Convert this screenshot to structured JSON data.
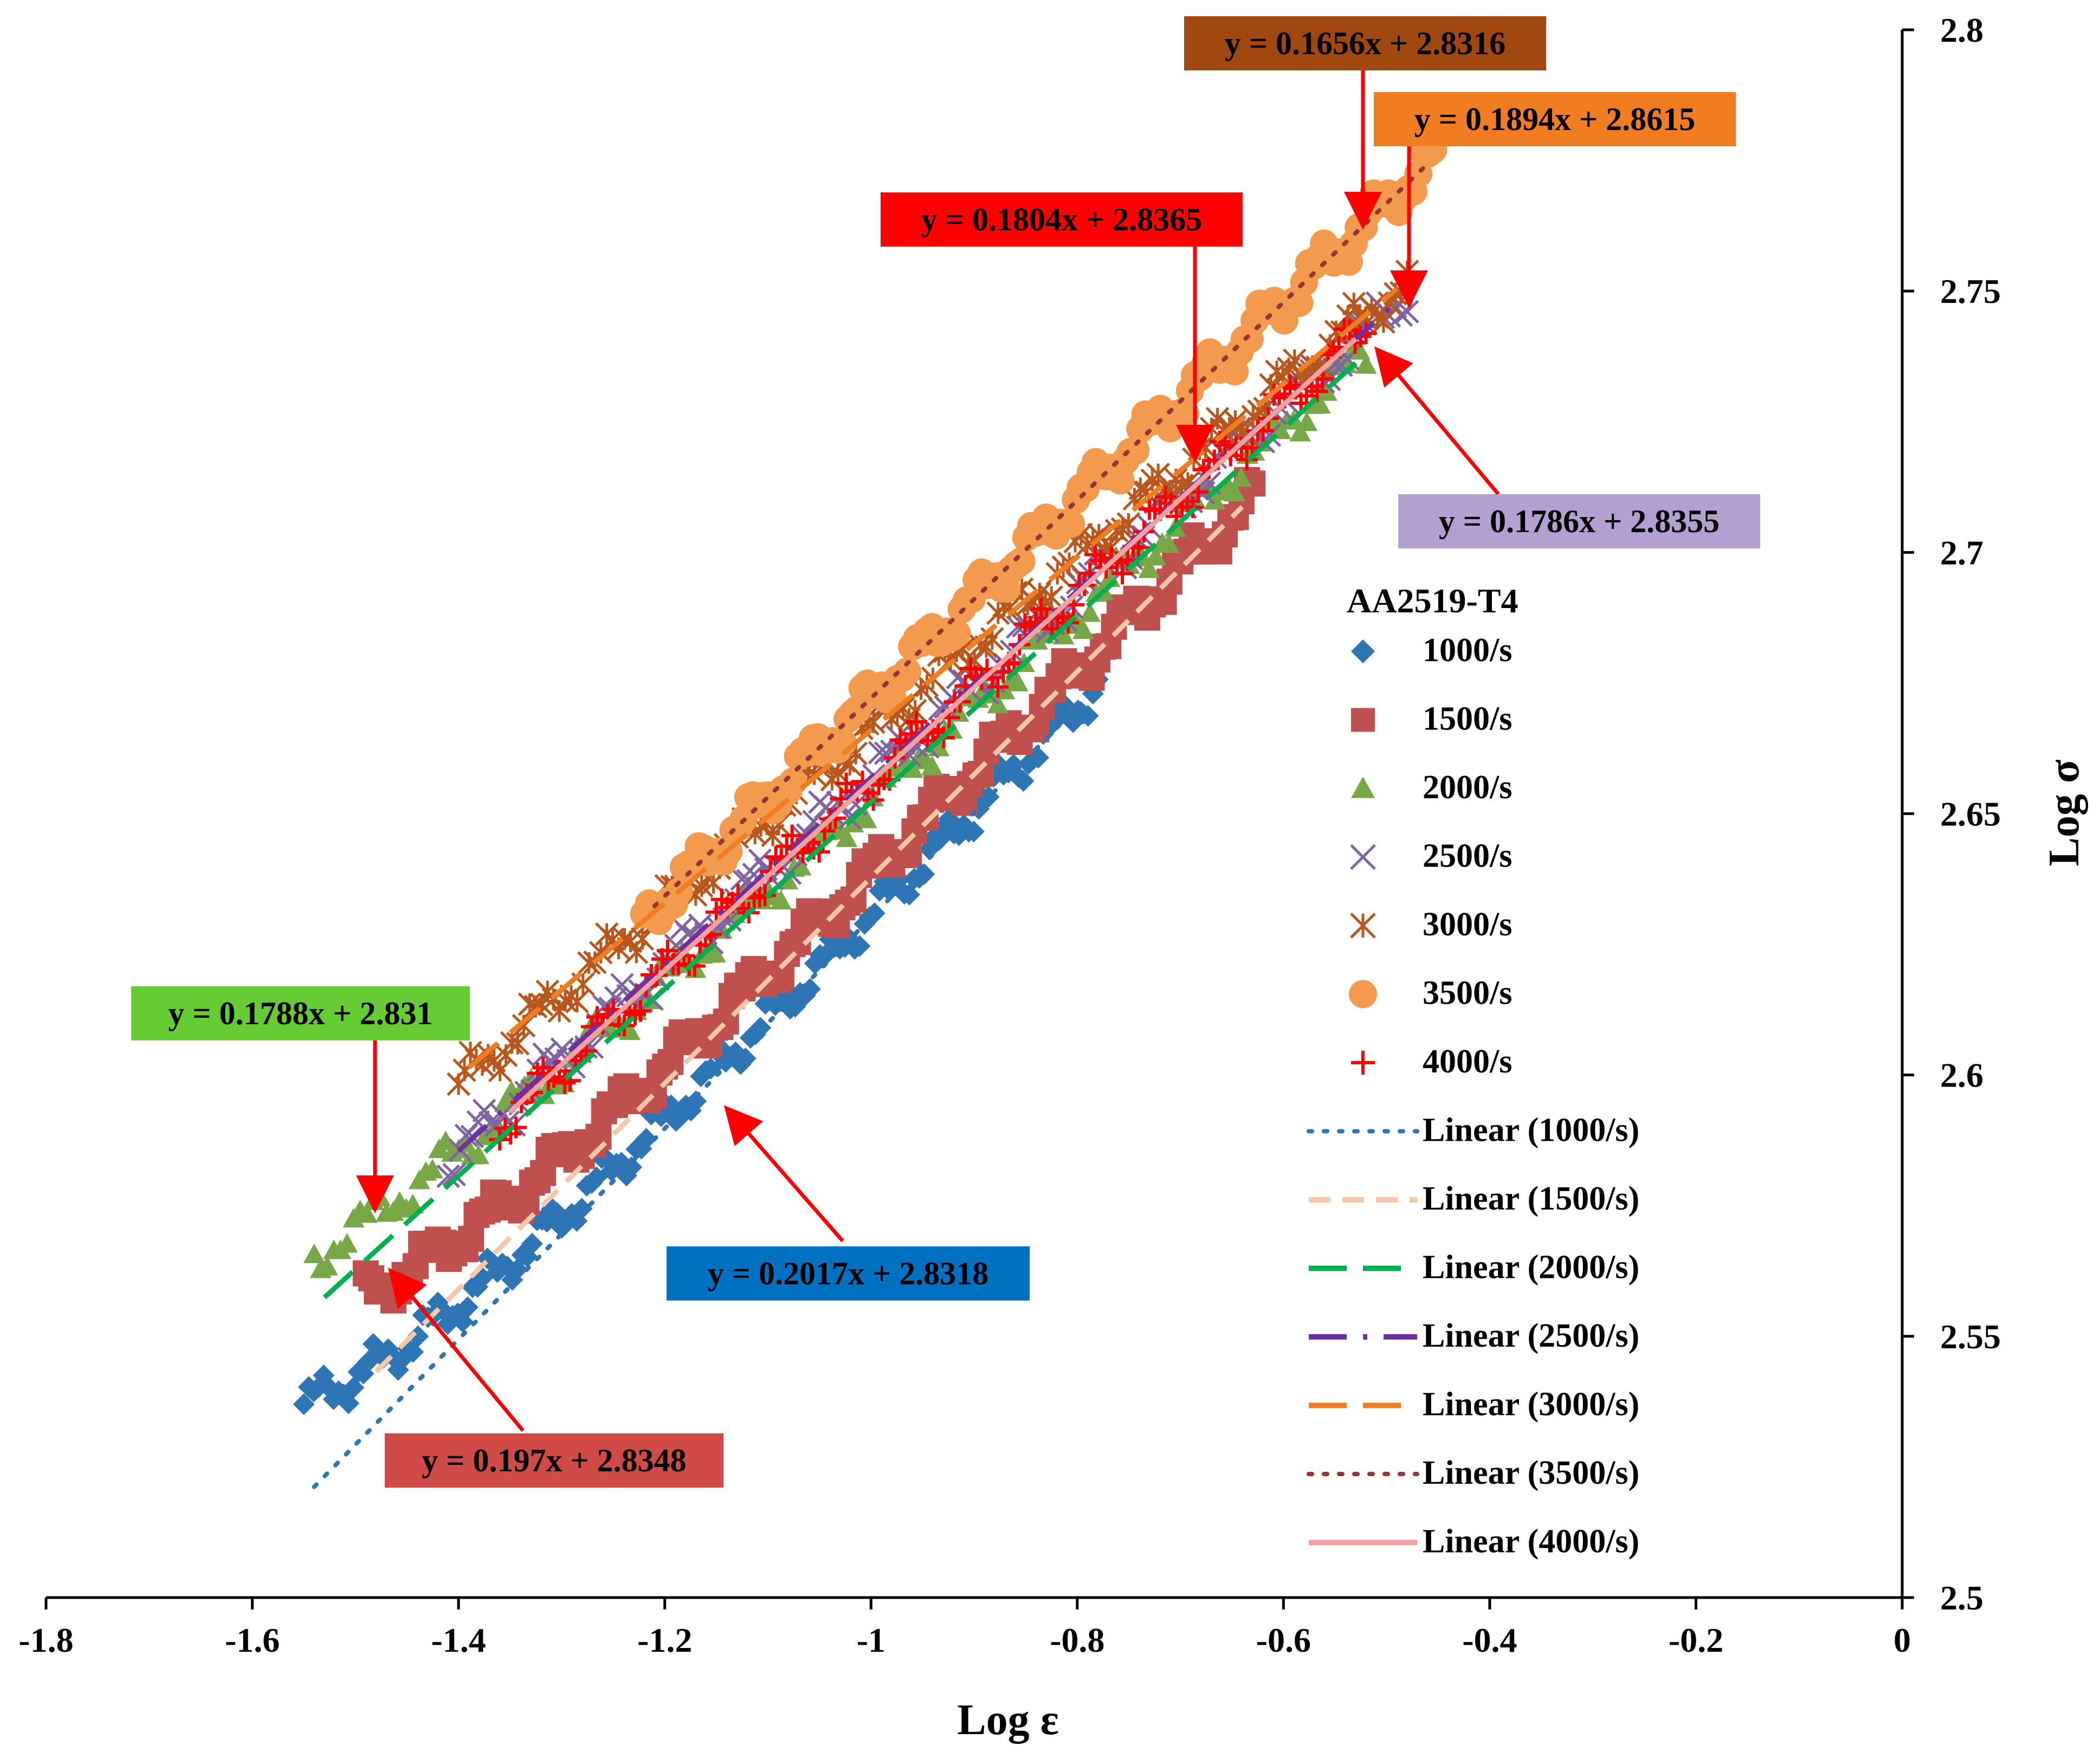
{
  "chart_data": {
    "type": "scatter",
    "title": "",
    "xlabel": "Log ε",
    "ylabel": "Log σ",
    "xlim": [
      -1.8,
      0
    ],
    "ylim": [
      2.5,
      2.8
    ],
    "x_ticks": [
      "-1.8",
      "-1.6",
      "-1.4",
      "-1.2",
      "-1",
      "-0.8",
      "-0.6",
      "-0.4",
      "-0.2",
      "0"
    ],
    "y_ticks": [
      "2.5",
      "2.55",
      "2.6",
      "2.65",
      "2.7",
      "2.75",
      "2.8"
    ],
    "legend_title": "AA2519-T4",
    "series": [
      {
        "name": "1000/s",
        "marker": "diamond",
        "color": "#2e75b6",
        "x_range": [
          -1.55,
          -0.78
        ],
        "slope": 0.2017,
        "intercept": 2.8318,
        "start_y": 2.537,
        "equation": "y = 0.2017x + 2.8318",
        "eq_bg": "#0070c0",
        "eq_color": "#000000"
      },
      {
        "name": "1500/s",
        "marker": "square",
        "color": "#c0504d",
        "x_range": [
          -1.49,
          -0.63
        ],
        "slope": 0.197,
        "intercept": 2.8348,
        "start_y": 2.558,
        "equation": "y = 0.197x + 2.8348",
        "eq_bg": "#d04a47",
        "eq_color": "#000000"
      },
      {
        "name": "2000/s",
        "marker": "triangle",
        "color": "#77a747",
        "x_range": [
          -1.54,
          -0.52
        ],
        "slope": 0.1788,
        "intercept": 2.831,
        "start_y": 2.565,
        "equation": "y = 0.1788x + 2.831",
        "eq_bg": "#66cc33",
        "eq_color": "#000000"
      },
      {
        "name": "2500/s",
        "marker": "x",
        "color": "#8064a2",
        "x_range": [
          -1.41,
          -0.48
        ],
        "slope": 0.1786,
        "intercept": 2.8355,
        "start_y": 2.583,
        "equation": "y = 0.1786x + 2.8355",
        "eq_bg": "#b4a0d0",
        "eq_color": "#000000"
      },
      {
        "name": "3000/s",
        "marker": "star",
        "color": "#b8561c",
        "x_range": [
          -1.4,
          -0.48
        ],
        "slope": 0.1656,
        "intercept": 2.8316,
        "start_y": 2.598,
        "equation": "y = 0.1656x + 2.8316",
        "eq_bg": "#a0480f",
        "eq_color": "#000000"
      },
      {
        "name": "3500/s",
        "marker": "circle",
        "color": "#f39a4e",
        "x_range": [
          -1.22,
          -0.45
        ],
        "slope": 0.1894,
        "intercept": 2.8615,
        "start_y": 2.63,
        "equation": "y = 0.1894x + 2.8615",
        "eq_bg": "#f07d22",
        "eq_color": "#000000"
      },
      {
        "name": "4000/s",
        "marker": "plus",
        "color": "#ff0000",
        "x_range": [
          -1.36,
          -0.52
        ],
        "slope": 0.1804,
        "intercept": 2.8365,
        "start_y": 2.59,
        "equation": "y = 0.1804x + 2.8365",
        "eq_bg": "#ff0000",
        "eq_color": "#000000"
      }
    ],
    "trendlines": [
      {
        "name": "Linear (1000/s)",
        "color": "#2e75b6",
        "dash": "dot"
      },
      {
        "name": "Linear (1500/s)",
        "color": "#fac7a6",
        "dash": "dash"
      },
      {
        "name": "Linear (2000/s)",
        "color": "#00b050",
        "dash": "longdash"
      },
      {
        "name": "Linear (2500/s)",
        "color": "#7030a0",
        "dash": "dashdot"
      },
      {
        "name": "Linear (3000/s)",
        "color": "#f07d22",
        "dash": "longdash"
      },
      {
        "name": "Linear (3500/s)",
        "color": "#943634",
        "dash": "dot"
      },
      {
        "name": "Linear (4000/s)",
        "color": "#f2a0a0",
        "dash": "solid"
      }
    ]
  }
}
